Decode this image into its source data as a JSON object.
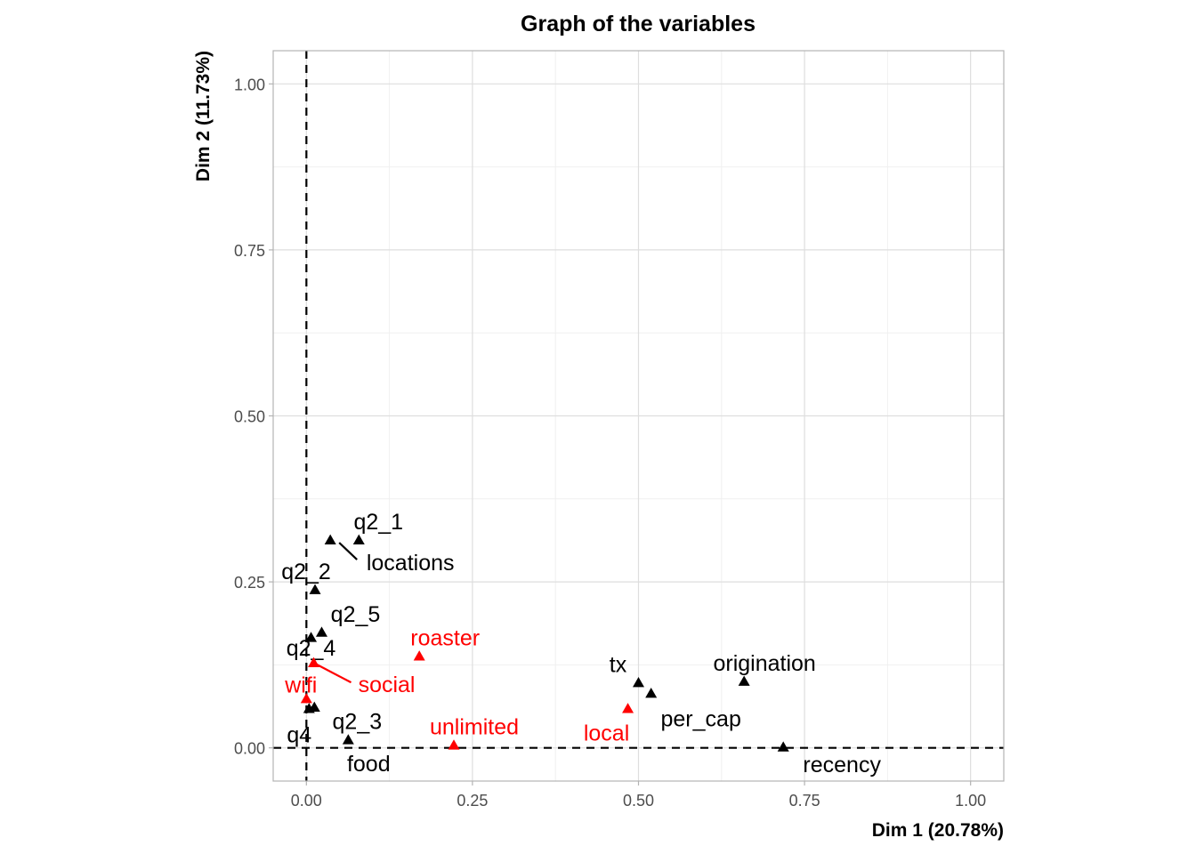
{
  "chart_data": {
    "type": "scatter",
    "title": "Graph of the variables",
    "xlabel": "Dim 1 (20.78%)",
    "ylabel": "Dim 2 (11.73%)",
    "xlim": [
      -0.05,
      1.05
    ],
    "ylim": [
      -0.05,
      1.05
    ],
    "x_ticks": [
      0,
      0.25,
      0.5,
      0.75,
      1.0
    ],
    "x_tick_labels": [
      "0.00",
      "0.25",
      "0.50",
      "0.75",
      "1.00"
    ],
    "y_ticks": [
      0,
      0.25,
      0.5,
      0.75,
      1.0
    ],
    "y_tick_labels": [
      "0.00",
      "0.25",
      "0.50",
      "0.75",
      "1.00"
    ],
    "grid": true,
    "reference_lines": {
      "x": 0,
      "y": 0,
      "style": "dashed"
    },
    "colors": {
      "active": "#000000",
      "supplementary": "#ff0000"
    },
    "points": [
      {
        "label": "q2_1",
        "x": 0.079,
        "y": 0.313,
        "group": "active"
      },
      {
        "label": "locations",
        "x": 0.036,
        "y": 0.313,
        "group": "active"
      },
      {
        "label": "q2_2",
        "x": 0.013,
        "y": 0.238,
        "group": "active"
      },
      {
        "label": "q2_5",
        "x": 0.023,
        "y": 0.174,
        "group": "active"
      },
      {
        "label": "q2_4",
        "x": 0.007,
        "y": 0.166,
        "group": "active"
      },
      {
        "label": "social",
        "x": 0.011,
        "y": 0.128,
        "group": "supplementary"
      },
      {
        "label": "wifi",
        "x": 0.0,
        "y": 0.074,
        "group": "supplementary"
      },
      {
        "label": "q4",
        "x": 0.004,
        "y": 0.059,
        "group": "active"
      },
      {
        "label": "food",
        "x": 0.012,
        "y": 0.061,
        "group": "active"
      },
      {
        "label": "q2_3",
        "x": 0.063,
        "y": 0.012,
        "group": "active"
      },
      {
        "label": "roaster",
        "x": 0.17,
        "y": 0.138,
        "group": "supplementary"
      },
      {
        "label": "unlimited",
        "x": 0.222,
        "y": 0.004,
        "group": "supplementary"
      },
      {
        "label": "tx",
        "x": 0.5,
        "y": 0.098,
        "group": "active"
      },
      {
        "label": "per_cap",
        "x": 0.519,
        "y": 0.082,
        "group": "active"
      },
      {
        "label": "local",
        "x": 0.484,
        "y": 0.059,
        "group": "supplementary"
      },
      {
        "label": "origination",
        "x": 0.659,
        "y": 0.1,
        "group": "active"
      },
      {
        "label": "recency",
        "x": 0.718,
        "y": 0.001,
        "group": "active"
      }
    ]
  }
}
